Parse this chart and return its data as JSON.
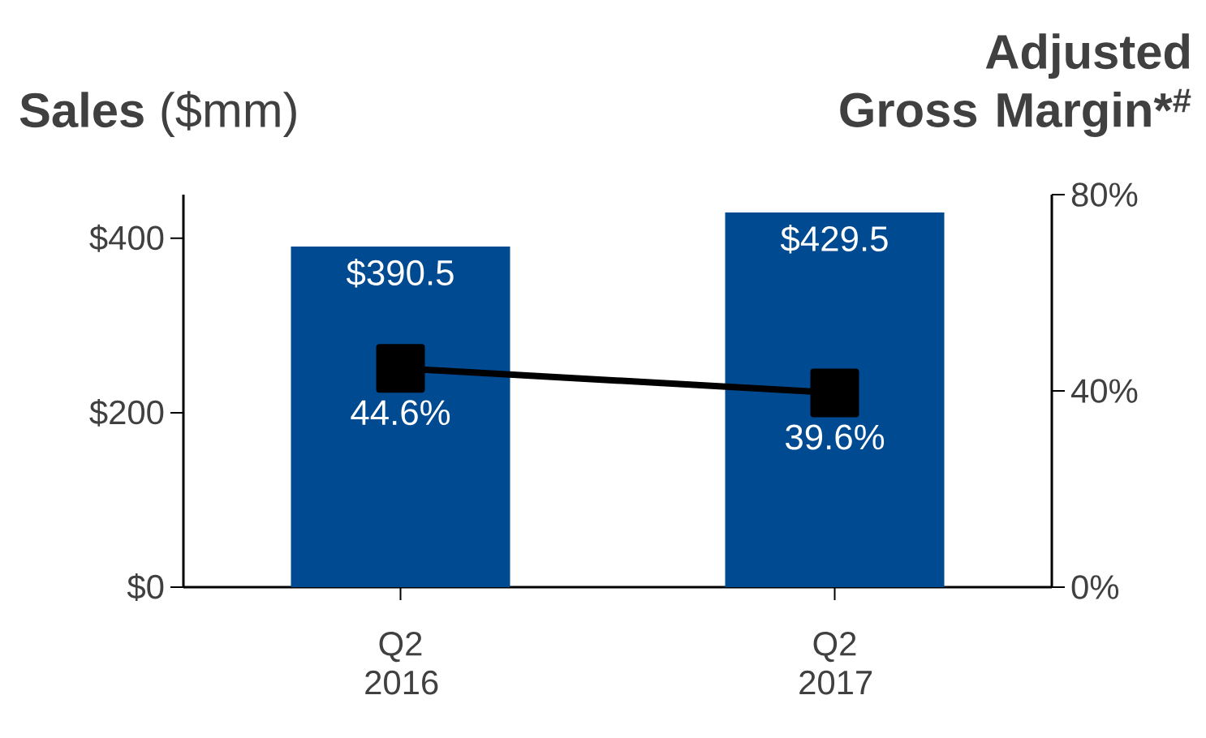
{
  "chart_data": {
    "type": "bar",
    "ylabel": "**Sales** ($mm)",
    "y2label": "Adjusted Gross Margin*$^{#}$",
    "categories": [
      "Q2 2016",
      "Q2 2017"
    ],
    "series": [
      {
        "color": "#004a91",
        "values": [
          390.5,
          429.5
        ],
        "value_labels": [
          "$390.5",
          "$429.5"
        ]
      },
      {
        "type": "line",
        "axis": "y2",
        "color": "#000000",
        "marker": "square",
        "values": [
          44.6,
          39.6
        ],
        "value_labels": [
          "44.6%",
          "39.6%"
        ]
      }
    ],
    "ylim": [
      0,
      450
    ],
    "yticks": [
      {
        "value": 0,
        "label": "$0"
      },
      {
        "value": 200,
        "label": "$200"
      },
      {
        "value": 400,
        "label": "$400"
      }
    ],
    "y2lim": [
      0,
      80
    ],
    "y2ticks": [
      {
        "value": 0,
        "label": "0%"
      },
      {
        "value": 40,
        "label": "40%"
      },
      {
        "value": 80,
        "label": "80%"
      }
    ]
  }
}
